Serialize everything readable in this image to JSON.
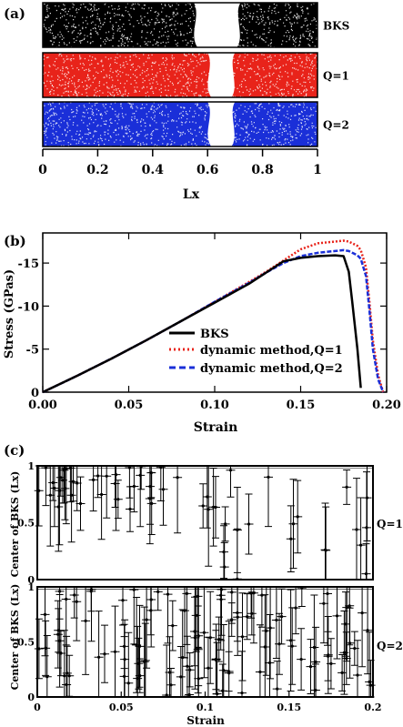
{
  "chart_data": [
    {
      "panel": "(a)",
      "type": "scatter",
      "xlabel": "Lx",
      "xlim": [
        0,
        1
      ],
      "xticks": [
        "0",
        "0.2",
        "0.4",
        "0.6",
        "0.8",
        "1"
      ],
      "rows": [
        {
          "name": "BKS",
          "color": "#000000",
          "gap": [
            0.55,
            0.72
          ]
        },
        {
          "name": "Q=1",
          "color": "#e8231a",
          "gap": [
            0.6,
            0.7
          ]
        },
        {
          "name": "Q=2",
          "color": "#1a2fd8",
          "gap": [
            0.6,
            0.7
          ]
        }
      ]
    },
    {
      "panel": "(b)",
      "type": "line",
      "xlabel": "Strain",
      "ylabel": "Stress (GPas)",
      "xlim": [
        0,
        0.2
      ],
      "ylim": [
        0,
        18.5
      ],
      "xticks": [
        "0.00",
        "0.05",
        "0.10",
        "0.15",
        "0.20"
      ],
      "yticks": [
        "0",
        "-5",
        "-10",
        "-15"
      ],
      "x": [
        0,
        0.02,
        0.04,
        0.06,
        0.08,
        0.1,
        0.12,
        0.13,
        0.14,
        0.15,
        0.16,
        0.17,
        0.175,
        0.178,
        0.18,
        0.183,
        0.185,
        0.188,
        0.19,
        0.192,
        0.195,
        0.198
      ],
      "series": [
        {
          "name": "BKS",
          "color": "#000000",
          "values": [
            0,
            1.9,
            3.9,
            6.0,
            8.2,
            10.4,
            12.6,
            13.9,
            15.2,
            15.6,
            15.8,
            15.9,
            15.8,
            14.0,
            10.5,
            5.0,
            0.5,
            null,
            null,
            null,
            null,
            null
          ]
        },
        {
          "name": "dynamic method,Q=1",
          "color": "#e8231a",
          "values": [
            0,
            1.9,
            3.9,
            6.0,
            8.2,
            10.5,
            12.8,
            14.0,
            15.3,
            16.6,
            17.3,
            17.5,
            17.6,
            17.5,
            17.3,
            17.0,
            16.5,
            14.5,
            10.5,
            6.0,
            2.0,
            0
          ]
        },
        {
          "name": "dynamic method,Q=2",
          "color": "#1a2fd8",
          "values": [
            0,
            1.9,
            3.9,
            6.0,
            8.2,
            10.5,
            12.7,
            13.9,
            15.0,
            15.8,
            16.2,
            16.4,
            16.5,
            16.4,
            16.2,
            15.9,
            15.5,
            13.5,
            9.5,
            5.0,
            1.5,
            0
          ]
        }
      ]
    },
    {
      "panel": "(c)",
      "type": "scatter",
      "xlabel": "Strain",
      "ylabel": "Center of BKS (Lx)",
      "xlim": [
        0,
        0.2
      ],
      "ylim": [
        0,
        1
      ],
      "xticks": [
        "0",
        "0.05",
        "0.1",
        "0.15",
        "0.2"
      ],
      "yticks": [
        "0",
        "0.5",
        "1"
      ],
      "series": [
        {
          "name": "Q=1"
        },
        {
          "name": "Q=2"
        }
      ]
    }
  ]
}
